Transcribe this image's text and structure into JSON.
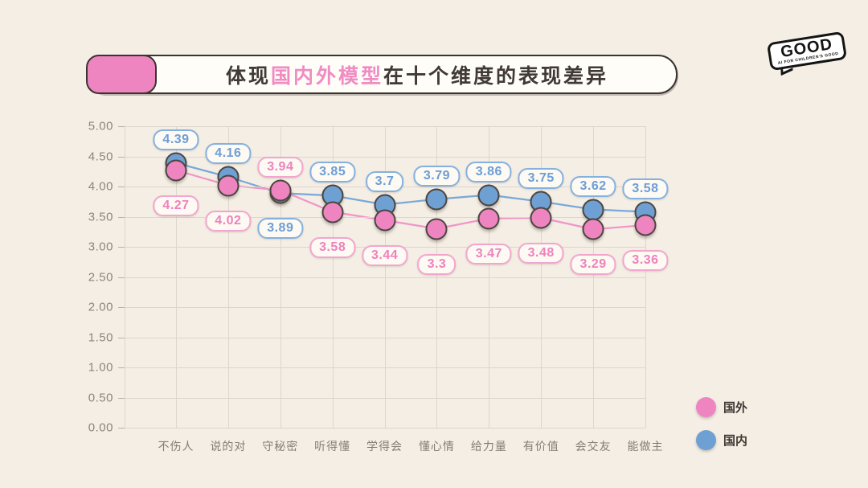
{
  "title": {
    "prefix": "体现",
    "highlight": "国内外模型",
    "suffix": "在十个维度的表现差异"
  },
  "logo": {
    "text": "GOOD",
    "tagline": "AI FOR CHILDREN'S GOOD"
  },
  "legend": [
    {
      "label": "国外",
      "color": "#ee85c0"
    },
    {
      "label": "国内",
      "color": "#6fa0d3"
    }
  ],
  "colors": {
    "background": "#f4eee5",
    "banner_accent": "#ee85c1",
    "title_highlight": "#f08cc2",
    "grid": "#ddd6cb",
    "axis_text": "#8d857a",
    "point_outline": "#4b4541"
  },
  "chart_data": {
    "type": "line",
    "title": "体现国内外模型在十个维度的表现差异",
    "categories": [
      "不伤人",
      "说的对",
      "守秘密",
      "听得懂",
      "学得会",
      "懂心情",
      "给力量",
      "有价值",
      "会交友",
      "能做主"
    ],
    "series": [
      {
        "name": "国外",
        "values": [
          4.27,
          4.02,
          3.94,
          3.58,
          3.44,
          3.3,
          3.47,
          3.48,
          3.29,
          3.36
        ],
        "fill": "#ee85c0",
        "line": "#f095c8",
        "label_text": "#ee82bd",
        "label_border": "#f3a6cd"
      },
      {
        "name": "国内",
        "values": [
          4.39,
          4.16,
          3.89,
          3.85,
          3.7,
          3.79,
          3.86,
          3.75,
          3.62,
          3.58
        ],
        "fill": "#6fa0d3",
        "line": "#79a8d8",
        "label_text": "#6c9ed6",
        "label_border": "#85b1de"
      }
    ],
    "xlabel": "",
    "ylabel": "",
    "ylim": [
      0,
      5
    ],
    "yticks": [
      0,
      0.5,
      1,
      1.5,
      2,
      2.5,
      3,
      3.5,
      4,
      4.5,
      5
    ],
    "ytick_labels": [
      "0.00",
      "0.50",
      "1.00",
      "1.50",
      "2.00",
      "2.50",
      "3.00",
      "3.50",
      "4.00",
      "4.50",
      "5.00"
    ],
    "grid": true,
    "data_labels": true,
    "legend_position": "bottom-right"
  }
}
